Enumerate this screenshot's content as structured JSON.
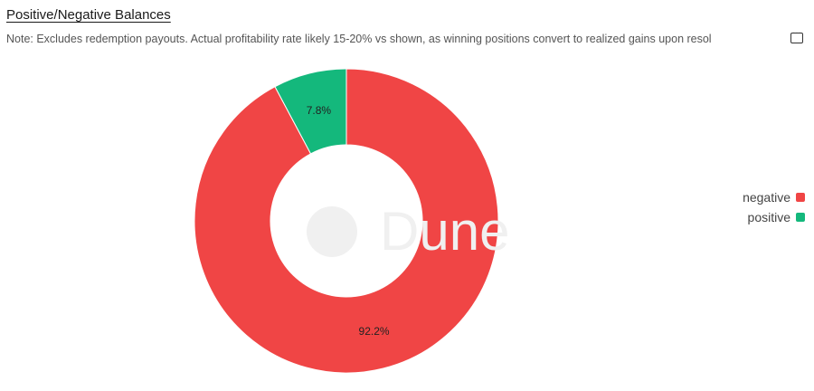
{
  "header": {
    "title": "Positive/Negative Balances",
    "note": "Note: Excludes redemption payouts. Actual profitability rate likely 15-20% vs shown, as winning positions convert to realized gains upon resol",
    "note_icon": "comment-icon"
  },
  "watermark": "Dune",
  "chart_data": {
    "type": "pie",
    "donut": true,
    "categories": [
      "negative",
      "positive"
    ],
    "values": [
      92.2,
      7.8
    ],
    "labels": [
      "92.2%",
      "7.8%"
    ],
    "colors": [
      "#f04545",
      "#14b87c"
    ],
    "legend": {
      "placement": "right",
      "entries": [
        "negative",
        "positive"
      ]
    }
  }
}
